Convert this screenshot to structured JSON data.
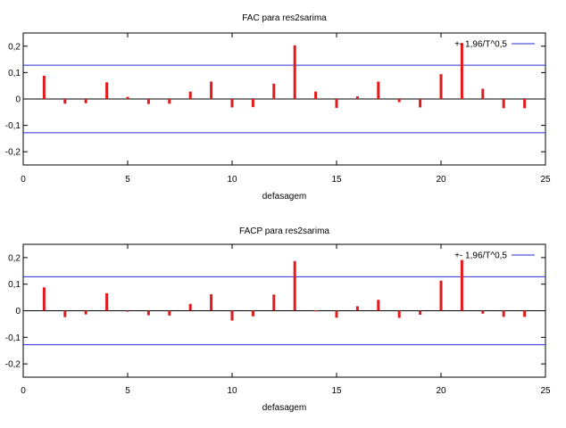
{
  "chart_data": [
    {
      "type": "bar",
      "title": "FAC para res2sarima",
      "xlabel": "defasagem",
      "ylabel": "",
      "xlim": [
        0,
        25
      ],
      "ylim": [
        -0.25,
        0.25
      ],
      "xticks": [
        "0",
        "5",
        "10",
        "15",
        "20",
        "25"
      ],
      "yticks": [
        "0,2",
        "0,1",
        "0",
        "-0,1",
        "-0,2"
      ],
      "grid": false,
      "legend_position": "top-right",
      "band": {
        "name": "+- 1,96/T^0,5",
        "value": 0.128,
        "color": "#2b2bd6"
      },
      "series_color": "#e31a1c",
      "x": [
        1,
        2,
        3,
        4,
        5,
        6,
        7,
        8,
        9,
        10,
        11,
        12,
        13,
        14,
        15,
        16,
        17,
        18,
        19,
        20,
        21,
        22,
        23,
        24
      ],
      "values": [
        0.088,
        -0.018,
        -0.016,
        0.063,
        0.008,
        -0.019,
        -0.018,
        0.028,
        0.066,
        -0.032,
        -0.031,
        0.058,
        0.203,
        0.028,
        -0.034,
        0.01,
        0.066,
        -0.012,
        -0.032,
        0.094,
        0.212,
        0.039,
        -0.035,
        -0.035
      ]
    },
    {
      "type": "bar",
      "title": "FACP para res2sarima",
      "xlabel": "defasagem",
      "ylabel": "",
      "xlim": [
        0,
        25
      ],
      "ylim": [
        -0.25,
        0.25
      ],
      "xticks": [
        "0",
        "5",
        "10",
        "15",
        "20",
        "25"
      ],
      "yticks": [
        "0,2",
        "0,1",
        "0",
        "-0,1",
        "-0,2"
      ],
      "grid": false,
      "legend_position": "top-right",
      "band": {
        "name": "+- 1,96/T^0,5",
        "value": 0.128,
        "color": "#2b2bd6"
      },
      "series_color": "#e31a1c",
      "x": [
        1,
        2,
        3,
        4,
        5,
        6,
        7,
        8,
        9,
        10,
        11,
        12,
        13,
        14,
        15,
        16,
        17,
        18,
        19,
        20,
        21,
        22,
        23,
        24
      ],
      "values": [
        0.088,
        -0.024,
        -0.014,
        0.066,
        -0.002,
        -0.017,
        -0.018,
        0.026,
        0.062,
        -0.037,
        -0.021,
        0.061,
        0.187,
        0.001,
        -0.026,
        0.017,
        0.041,
        -0.027,
        -0.015,
        0.113,
        0.191,
        -0.011,
        -0.023,
        -0.023
      ]
    }
  ]
}
